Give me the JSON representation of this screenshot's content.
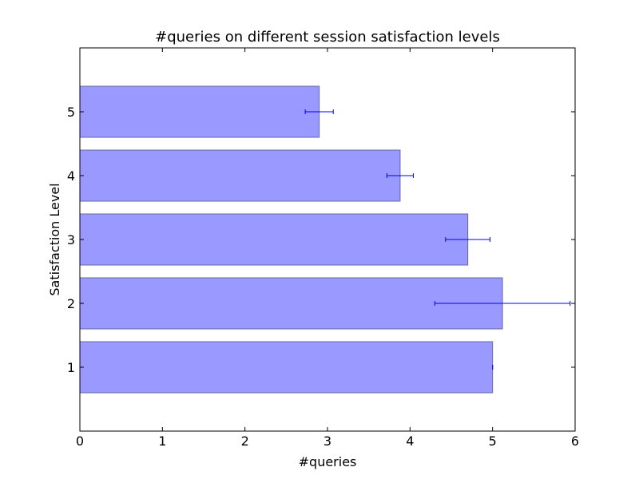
{
  "chart_data": {
    "type": "bar",
    "orientation": "horizontal",
    "title": "#queries on different session satisfaction levels",
    "xlabel": "#queries",
    "ylabel": "Satisfaction Level",
    "categories": [
      "1",
      "2",
      "3",
      "4",
      "5"
    ],
    "values": [
      5.0,
      5.12,
      4.7,
      3.88,
      2.9
    ],
    "errors": [
      0.0,
      0.82,
      0.27,
      0.16,
      0.17
    ],
    "xlim": [
      0,
      6
    ],
    "ylim": [
      0,
      6
    ],
    "xticks": [
      "0",
      "1",
      "2",
      "3",
      "4",
      "5",
      "6"
    ],
    "grid": false,
    "colors": {
      "bar_fill": "#9999ff",
      "bar_edge": "#6666aa",
      "error_bar": "#0000ff"
    }
  }
}
